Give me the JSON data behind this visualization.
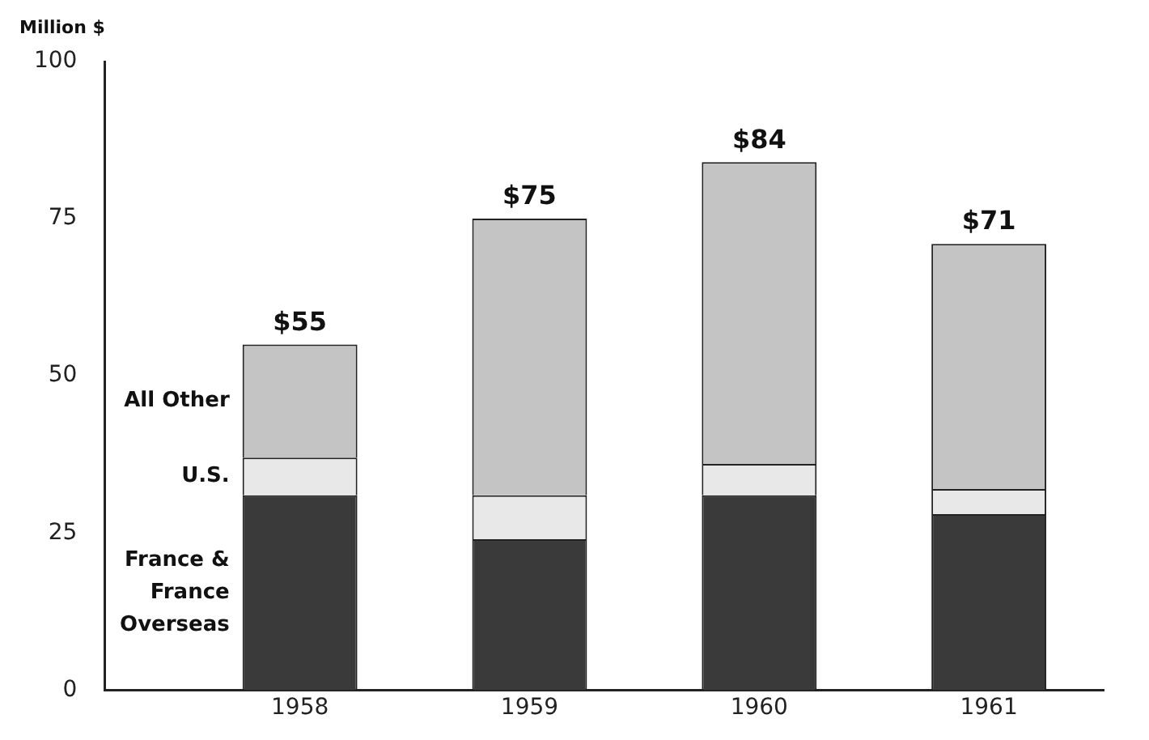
{
  "chart_data": {
    "type": "bar",
    "ylabel": "Million $",
    "categories": [
      "1958",
      "1959",
      "1960",
      "1961"
    ],
    "stacked": true,
    "series": [
      {
        "name": "France & France Overseas",
        "color": "#3a3a3a",
        "values": [
          31,
          24,
          31,
          28
        ]
      },
      {
        "name": "U.S.",
        "color": "#e8e8e8",
        "values": [
          6,
          7,
          5,
          4
        ]
      },
      {
        "name": "All Other",
        "color": "#c4c4c4",
        "values": [
          18,
          44,
          48,
          39
        ]
      }
    ],
    "totals": [
      "$55",
      "$75",
      "$84",
      "$71"
    ],
    "ylim": [
      0,
      100
    ],
    "yticks": [
      0,
      25,
      50,
      75,
      100
    ],
    "grid": false,
    "legend": false
  }
}
